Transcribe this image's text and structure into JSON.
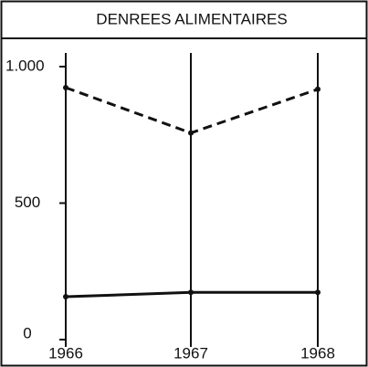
{
  "chart_data": {
    "type": "line",
    "title": "DENREES ALIMENTAIRES",
    "categories": [
      "1966",
      "1967",
      "1968"
    ],
    "series": [
      {
        "name": null,
        "color": "#111111",
        "dashed": true,
        "values": [
          923,
          757,
          917
        ]
      },
      {
        "name": null,
        "color": "#111111",
        "dashed": false,
        "values": [
          157,
          173,
          173
        ]
      }
    ],
    "ylim": [
      0,
      1050
    ],
    "yticks": [
      0,
      500,
      {
        "value": 1000,
        "label": "1.000"
      }
    ]
  }
}
